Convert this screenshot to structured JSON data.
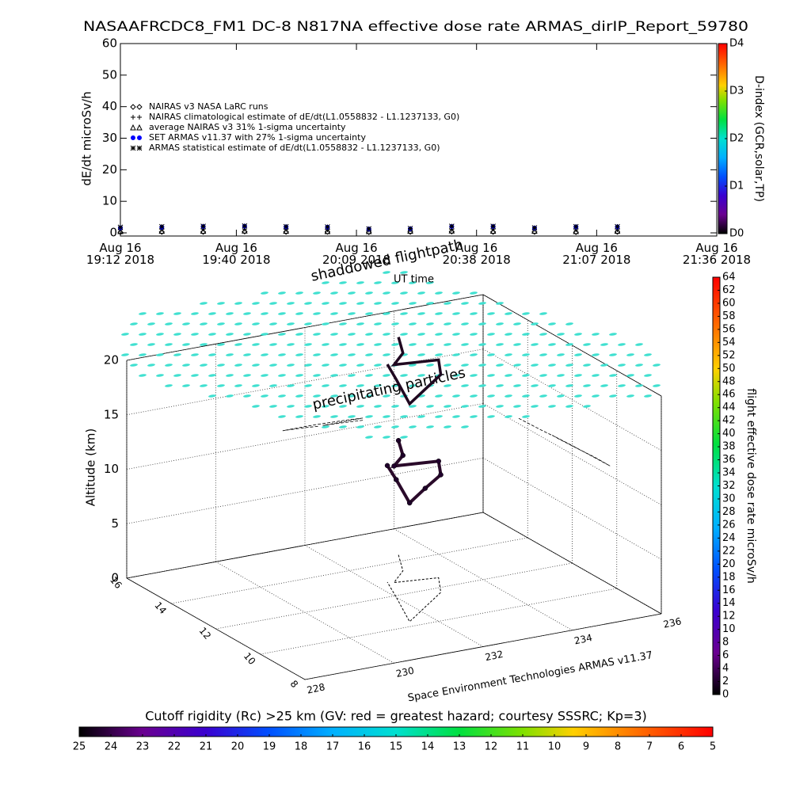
{
  "chart_data": [
    {
      "type": "scatter",
      "title": "NASAAFRCDC8_FM1 DC-8   N817NA effective dose rate ARMAS_dirIP_Report_59780",
      "ylabel": "dE/dt microSv/h",
      "x": [
        "2018-08-16T19:12",
        "2018-08-16T19:22",
        "2018-08-16T19:32",
        "2018-08-16T19:42",
        "2018-08-16T19:52",
        "2018-08-16T20:02",
        "2018-08-16T20:12",
        "2018-08-16T20:22",
        "2018-08-16T20:32",
        "2018-08-16T20:42",
        "2018-08-16T20:52",
        "2018-08-16T21:02",
        "2018-08-16T21:12"
      ],
      "xlim": [
        "2018-08-16T19:12",
        "2018-08-16T21:36"
      ],
      "xticks": [
        {
          "value": "2018-08-16T19:12",
          "label": "Aug 16\n19:12 2018"
        },
        {
          "value": "2018-08-16T19:40",
          "label": "Aug 16\n19:40 2018"
        },
        {
          "value": "2018-08-16T20:09",
          "label": "Aug 16\n20:09 2018"
        },
        {
          "value": "2018-08-16T20:38",
          "label": "Aug 16\n20:38 2018"
        },
        {
          "value": "2018-08-16T21:07",
          "label": "Aug 16\n21:07 2018"
        },
        {
          "value": "2018-08-16T21:36",
          "label": "Aug 16\n21:36 2018"
        }
      ],
      "ylim": [
        -1,
        60
      ],
      "yticks": [
        0,
        10,
        20,
        30,
        40,
        50,
        60
      ],
      "legend": "upper left",
      "series": [
        {
          "name": "NAIRAS v3 NASA LaRC runs",
          "marker": "diamond",
          "color": "#000000",
          "values": [
            0.2,
            0.3,
            0.3,
            0.4,
            0.3,
            0.3,
            0.2,
            0.3,
            0.4,
            0.3,
            0.3,
            0.2,
            0.3
          ]
        },
        {
          "name": "NAIRAS climatological estimate of dE/dt(L1.0558832 - L1.1237133, G0)",
          "marker": "plus",
          "color": "#000000",
          "values": [
            1.0,
            1.1,
            1.2,
            1.2,
            1.1,
            1.0,
            0.9,
            1.0,
            1.1,
            1.2,
            1.1,
            1.0,
            1.0
          ]
        },
        {
          "name": "average NAIRAS v3 31% 1-sigma uncertainty",
          "marker": "triangle",
          "color": "#000000",
          "values": [
            0.5,
            0.6,
            0.6,
            0.7,
            0.6,
            0.5,
            0.5,
            0.6,
            0.7,
            0.6,
            0.6,
            0.5,
            0.6
          ]
        },
        {
          "name": "SET ARMAS v11.37 with 27% 1-sigma uncertainty",
          "marker": "circle",
          "color": "#0000ff",
          "values": [
            1.6,
            1.8,
            2.0,
            2.1,
            1.9,
            1.8,
            1.2,
            1.3,
            2.0,
            2.0,
            1.5,
            1.9,
            1.9
          ]
        },
        {
          "name": "ARMAS statistical estimate of dE/dt(L1.0558832 - L1.1237133, G0)",
          "marker": "asterisk",
          "color": "#000000",
          "values": [
            1.8,
            2.0,
            2.1,
            2.2,
            2.0,
            1.9,
            1.3,
            1.4,
            2.1,
            2.1,
            1.6,
            2.0,
            2.0
          ]
        }
      ]
    },
    {
      "type": "colorbar",
      "orientation": "vertical",
      "label": "D-index (GCR,solar,TP)",
      "ylim": [
        0,
        4
      ],
      "yticks": [
        {
          "value": 0,
          "label": "D0"
        },
        {
          "value": 1,
          "label": "D1"
        },
        {
          "value": 2,
          "label": "D2"
        },
        {
          "value": 3,
          "label": "D3"
        },
        {
          "value": 4,
          "label": "D4"
        }
      ]
    },
    {
      "type": "scatter3d",
      "zlabel": "Altitude (km)",
      "annotations": [
        "shaddowed flightpath",
        "UT time",
        "precipitating particles",
        "Space Environment Technologies ARMAS v11.37"
      ],
      "xlim": [
        228,
        236
      ],
      "xticks": [
        228,
        230,
        232,
        234,
        236
      ],
      "ylim": [
        8,
        16
      ],
      "yticks": [
        8,
        10,
        12,
        14,
        16
      ],
      "zlim": [
        0,
        20
      ],
      "zticks": [
        0,
        5,
        10,
        15,
        20
      ],
      "x": [
        233.3,
        232.9,
        232.4,
        233.3,
        232.9,
        232.2,
        231.5,
        232.0,
        232.3
      ],
      "y": [
        14.4,
        13.4,
        12.8,
        12.6,
        11.7,
        11.0,
        10.3,
        11.9,
        12.9
      ],
      "z": [
        10.5,
        10.6,
        10.7,
        10.7,
        10.8,
        10.9,
        10.9,
        10.8,
        10.7
      ],
      "values": [
        1.8,
        1.9,
        2.0,
        2.1,
        2.0,
        1.9,
        1.8,
        1.9,
        2.0
      ]
    },
    {
      "type": "colorbar",
      "orientation": "vertical",
      "label": "flight effective dose rate microSv/h",
      "ylim": [
        0,
        64
      ],
      "yticks": [
        0,
        2,
        4,
        6,
        8,
        10,
        12,
        14,
        16,
        18,
        20,
        22,
        24,
        26,
        28,
        30,
        32,
        34,
        36,
        38,
        40,
        42,
        44,
        46,
        48,
        50,
        52,
        54,
        56,
        58,
        60,
        62,
        64
      ]
    },
    {
      "type": "colorbar",
      "orientation": "horizontal",
      "label": "Cutoff rigidity (Rc) >25 km (GV: red = greatest hazard; courtesy SSSRC; Kp=3)",
      "xlim": [
        25,
        5
      ],
      "xticks": [
        25,
        24,
        23,
        22,
        21,
        20,
        19,
        18,
        17,
        16,
        15,
        14,
        13,
        12,
        11,
        10,
        9,
        8,
        7,
        6,
        5
      ]
    }
  ]
}
